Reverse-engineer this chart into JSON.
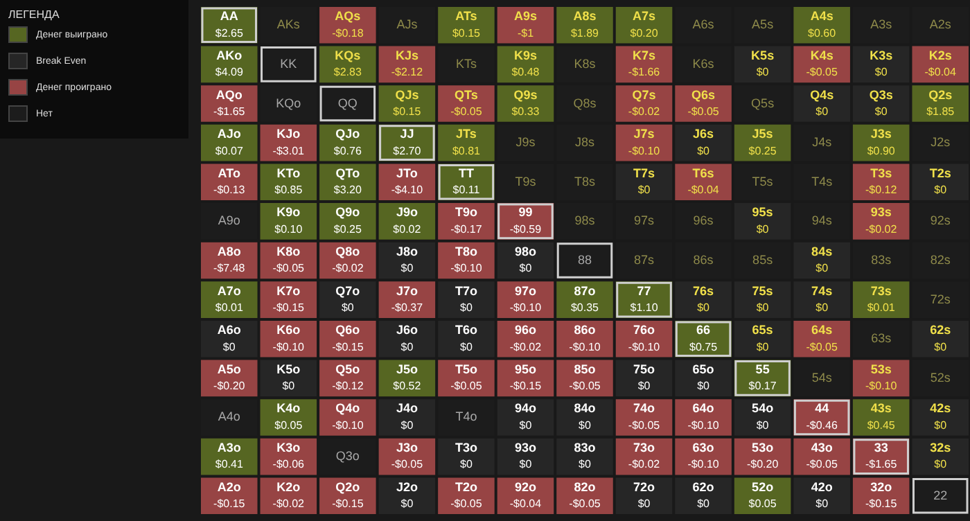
{
  "chart_data": [
    {
      "type": "other",
      "title": "ЛЕГЕНДА",
      "annotations": [
        "Денег выиграно",
        "Break Even",
        "Денег проиграно",
        "Нет"
      ]
    },
    {
      "type": "heatmap",
      "colors": [
        "#566622",
        "#262626",
        "#974444",
        "#1c1c1c"
      ],
      "categories": [
        null,
        null,
        null,
        null,
        null,
        null,
        null,
        null,
        null,
        null,
        null,
        null,
        null
      ],
      "y_categories": [
        null,
        null,
        null,
        null,
        null,
        null,
        null,
        null,
        null,
        null,
        null,
        null,
        null
      ],
      "cells": [
        [
          2.65,
          null,
          -0.18,
          null,
          0.15,
          -1,
          1.89,
          0.2,
          null,
          null,
          0.6,
          null,
          null
        ],
        [
          4.09,
          null,
          2.83,
          -2.12,
          null,
          0.48,
          null,
          -1.66,
          null,
          0,
          -0.05,
          0,
          -0.04
        ],
        [
          -1.65,
          null,
          null,
          0.15,
          -0.05,
          0.33,
          null,
          -0.02,
          -0.05,
          null,
          0,
          0,
          1.85
        ],
        [
          0.07,
          -3.01,
          0.76,
          2.7,
          0.81,
          null,
          null,
          -0.1,
          0,
          0.25,
          null,
          0.9,
          null
        ],
        [
          -0.13,
          0.85,
          3.2,
          -4.1,
          0.11,
          null,
          null,
          0,
          -0.04,
          null,
          null,
          -0.12,
          0
        ],
        [
          null,
          0.1,
          0.25,
          0.02,
          -0.17,
          -0.59,
          null,
          null,
          null,
          0,
          null,
          -0.02,
          null
        ],
        [
          -7.48,
          -0.05,
          -0.02,
          0,
          -0.1,
          0,
          null,
          null,
          null,
          null,
          0,
          null,
          null
        ],
        [
          0.01,
          -0.15,
          0,
          -0.37,
          0,
          -0.1,
          0.35,
          1.1,
          0,
          0,
          0,
          0.01,
          null
        ],
        [
          0,
          -0.1,
          -0.15,
          0,
          0,
          -0.02,
          -0.1,
          -0.1,
          0.75,
          0,
          -0.05,
          null,
          0
        ],
        [
          -0.2,
          0,
          -0.12,
          0.52,
          -0.05,
          -0.15,
          -0.05,
          0,
          0,
          0.17,
          null,
          -0.1,
          null
        ],
        [
          null,
          0.05,
          -0.1,
          0,
          null,
          0,
          0,
          -0.05,
          -0.1,
          0,
          -0.46,
          0.45,
          0
        ],
        [
          0.41,
          -0.06,
          null,
          -0.05,
          0,
          0,
          0,
          -0.02,
          -0.1,
          -0.2,
          -0.05,
          -1.65,
          0
        ],
        [
          -0.15,
          -0.02,
          -0.15,
          0,
          -0.05,
          -0.04,
          -0.05,
          0,
          0,
          0.05,
          0,
          -0.15,
          null
        ]
      ],
      "cell_labels": [
        [
          "$2.65",
          null,
          "-$0.18",
          null,
          "$0.15",
          "-$1",
          "$1.89",
          "$0.20",
          null,
          null,
          "$0.60",
          null,
          null
        ],
        [
          "$4.09",
          null,
          "$2.83",
          "-$2.12",
          null,
          "$0.48",
          null,
          "-$1.66",
          null,
          "$0",
          "-$0.05",
          "$0",
          "-$0.04"
        ],
        [
          "-$1.65",
          null,
          null,
          "$0.15",
          "-$0.05",
          "$0.33",
          null,
          "-$0.02",
          "-$0.05",
          null,
          "$0",
          "$0",
          "$1.85"
        ],
        [
          "$0.07",
          "-$3.01",
          "$0.76",
          "$2.70",
          "$0.81",
          null,
          null,
          "-$0.10",
          "$0",
          "$0.25",
          null,
          "$0.90",
          null
        ],
        [
          "-$0.13",
          "$0.85",
          "$3.20",
          "-$4.10",
          "$0.11",
          null,
          null,
          "$0",
          "-$0.04",
          null,
          null,
          "-$0.12",
          "$0"
        ],
        [
          null,
          "$0.10",
          "$0.25",
          "$0.02",
          "-$0.17",
          "-$0.59",
          null,
          null,
          null,
          "$0",
          null,
          "-$0.02",
          null
        ],
        [
          "-$7.48",
          "-$0.05",
          "-$0.02",
          "$0",
          "-$0.10",
          "$0",
          null,
          null,
          null,
          null,
          "$0",
          null,
          null
        ],
        [
          "$0.01",
          "-$0.15",
          "$0",
          "-$0.37",
          "$0",
          "-$0.10",
          "$0.35",
          "$1.10",
          "$0",
          "$0",
          "$0",
          "$0.01",
          null
        ],
        [
          "$0",
          "-$0.10",
          "-$0.15",
          "$0",
          "$0",
          "-$0.02",
          "-$0.10",
          "-$0.10",
          "$0.75",
          "$0",
          "-$0.05",
          null,
          "$0"
        ],
        [
          "-$0.20",
          "$0",
          "-$0.12",
          "$0.52",
          "-$0.05",
          "-$0.15",
          "-$0.05",
          "$0",
          "$0",
          "$0.17",
          null,
          "-$0.10",
          null
        ],
        [
          null,
          "$0.05",
          "-$0.10",
          "$0",
          null,
          "$0",
          "$0",
          "-$0.05",
          "-$0.10",
          "$0",
          "-$0.46",
          "$0.45",
          "$0"
        ],
        [
          "$0.41",
          "-$0.06",
          null,
          "-$0.05",
          "$0",
          "$0",
          "$0",
          "-$0.02",
          "-$0.10",
          "-$0.20",
          "-$0.05",
          "-$1.65",
          "$0"
        ],
        [
          "-$0.15",
          "-$0.02",
          "-$0.15",
          "$0",
          "-$0.05",
          "-$0.04",
          "-$0.05",
          "$0",
          "$0",
          "$0.05",
          "$0",
          "-$0.15",
          null
        ]
      ],
      "annotations": [
        "AA",
        "AKs",
        "AQs",
        "AJs",
        "ATs",
        "A9s",
        "A8s",
        "A7s",
        "A6s",
        "A5s",
        "A4s",
        "A3s",
        "A2s",
        "AKo",
        "KK",
        "KQs",
        "KJs",
        "KTs",
        "K9s",
        "K8s",
        "K7s",
        "K6s",
        "K5s",
        "K4s",
        "K3s",
        "K2s",
        "AQo",
        "KQo",
        "QQ",
        "QJs",
        "QTs",
        "Q9s",
        "Q8s",
        "Q7s",
        "Q6s",
        "Q5s",
        "Q4s",
        "Q3s",
        "Q2s",
        "AJo",
        "KJo",
        "QJo",
        "JJ",
        "JTs",
        "J9s",
        "J8s",
        "J7s",
        "J6s",
        "J5s",
        "J4s",
        "J3s",
        "J2s",
        "ATo",
        "KTo",
        "QTo",
        "JTo",
        "TT",
        "T9s",
        "T8s",
        "T7s",
        "T6s",
        "T5s",
        "T4s",
        "T3s",
        "T2s",
        "A9o",
        "K9o",
        "Q9o",
        "J9o",
        "T9o",
        "99",
        "98s",
        "97s",
        "96s",
        "95s",
        "94s",
        "93s",
        "92s",
        "A8o",
        "K8o",
        "Q8o",
        "J8o",
        "T8o",
        "98o",
        "88",
        "87s",
        "86s",
        "85s",
        "84s",
        "83s",
        "82s",
        "A7o",
        "K7o",
        "Q7o",
        "J7o",
        "T7o",
        "97o",
        "87o",
        "77",
        "76s",
        "75s",
        "74s",
        "73s",
        "72s",
        "A6o",
        "K6o",
        "Q6o",
        "J6o",
        "T6o",
        "96o",
        "86o",
        "76o",
        "66",
        "65s",
        "64s",
        "63s",
        "62s",
        "A5o",
        "K5o",
        "Q5o",
        "J5o",
        "T5o",
        "95o",
        "85o",
        "75o",
        "65o",
        "55",
        "54s",
        "53s",
        "52s",
        "A4o",
        "K4o",
        "Q4o",
        "J4o",
        "T4o",
        "94o",
        "84o",
        "74o",
        "64o",
        "54o",
        "44",
        "43s",
        "42s",
        "A3o",
        "K3o",
        "Q3o",
        "J3o",
        "T3o",
        "93o",
        "83o",
        "73o",
        "63o",
        "53o",
        "43o",
        "33",
        "32s",
        "A2o",
        "K2o",
        "Q2o",
        "J2o",
        "T2o",
        "92o",
        "82o",
        "72o",
        "62o",
        "52o",
        "42o",
        "32o",
        "22"
      ]
    }
  ]
}
